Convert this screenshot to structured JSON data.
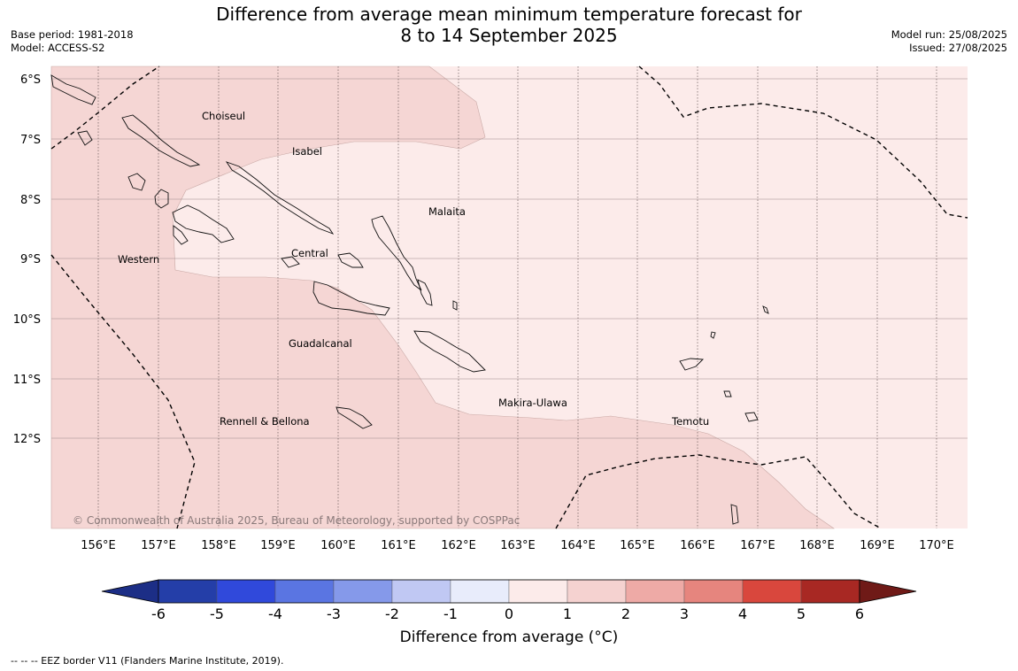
{
  "title_line1": "Difference from average mean minimum temperature forecast for",
  "title_line2": "8 to 14 September 2025",
  "meta_left": {
    "base_period": "Base period: 1981-2018",
    "model": "Model: ACCESS-S2"
  },
  "meta_right": {
    "model_run": "Model run: 25/08/2025",
    "issued": "Issued: 27/08/2025"
  },
  "map": {
    "lat_labels": [
      "6°S",
      "7°S",
      "8°S",
      "9°S",
      "10°S",
      "11°S",
      "12°S"
    ],
    "lon_labels": [
      "156°E",
      "157°E",
      "158°E",
      "159°E",
      "160°E",
      "161°E",
      "162°E",
      "163°E",
      "164°E",
      "165°E",
      "166°E",
      "167°E",
      "168°E",
      "169°E",
      "170°E"
    ],
    "place_names": [
      "Choiseul",
      "Isabel",
      "Malaita",
      "Western",
      "Central",
      "Guadalcanal",
      "Makira-Ulawa",
      "Rennell & Bellona",
      "Temotu"
    ],
    "copyright": "© Commonwealth of Australia 2025, Bureau of Meteorology, supported by COSPPac",
    "colors": {
      "zone_1_2": "#f5d6d4",
      "zone_0_1": "#fcebea",
      "outline": "#c9a9a6"
    }
  },
  "colorbar": {
    "ticks": [
      "-6",
      "-5",
      "-4",
      "-3",
      "-2",
      "-1",
      "0",
      "1",
      "2",
      "3",
      "4",
      "5",
      "6"
    ],
    "colors": [
      "#1c2e86",
      "#243ea8",
      "#3049db",
      "#5a75e2",
      "#8599ea",
      "#c0c8f3",
      "#e8ecfb",
      "#fcebea",
      "#f5d2d0",
      "#eeaaa6",
      "#e6857e",
      "#d9473d",
      "#a82823",
      "#6f1a17"
    ],
    "title": "Difference from average (°C)"
  },
  "footnote": "-- -- -- EEZ border V11 (Flanders Marine Institute, 2019)."
}
